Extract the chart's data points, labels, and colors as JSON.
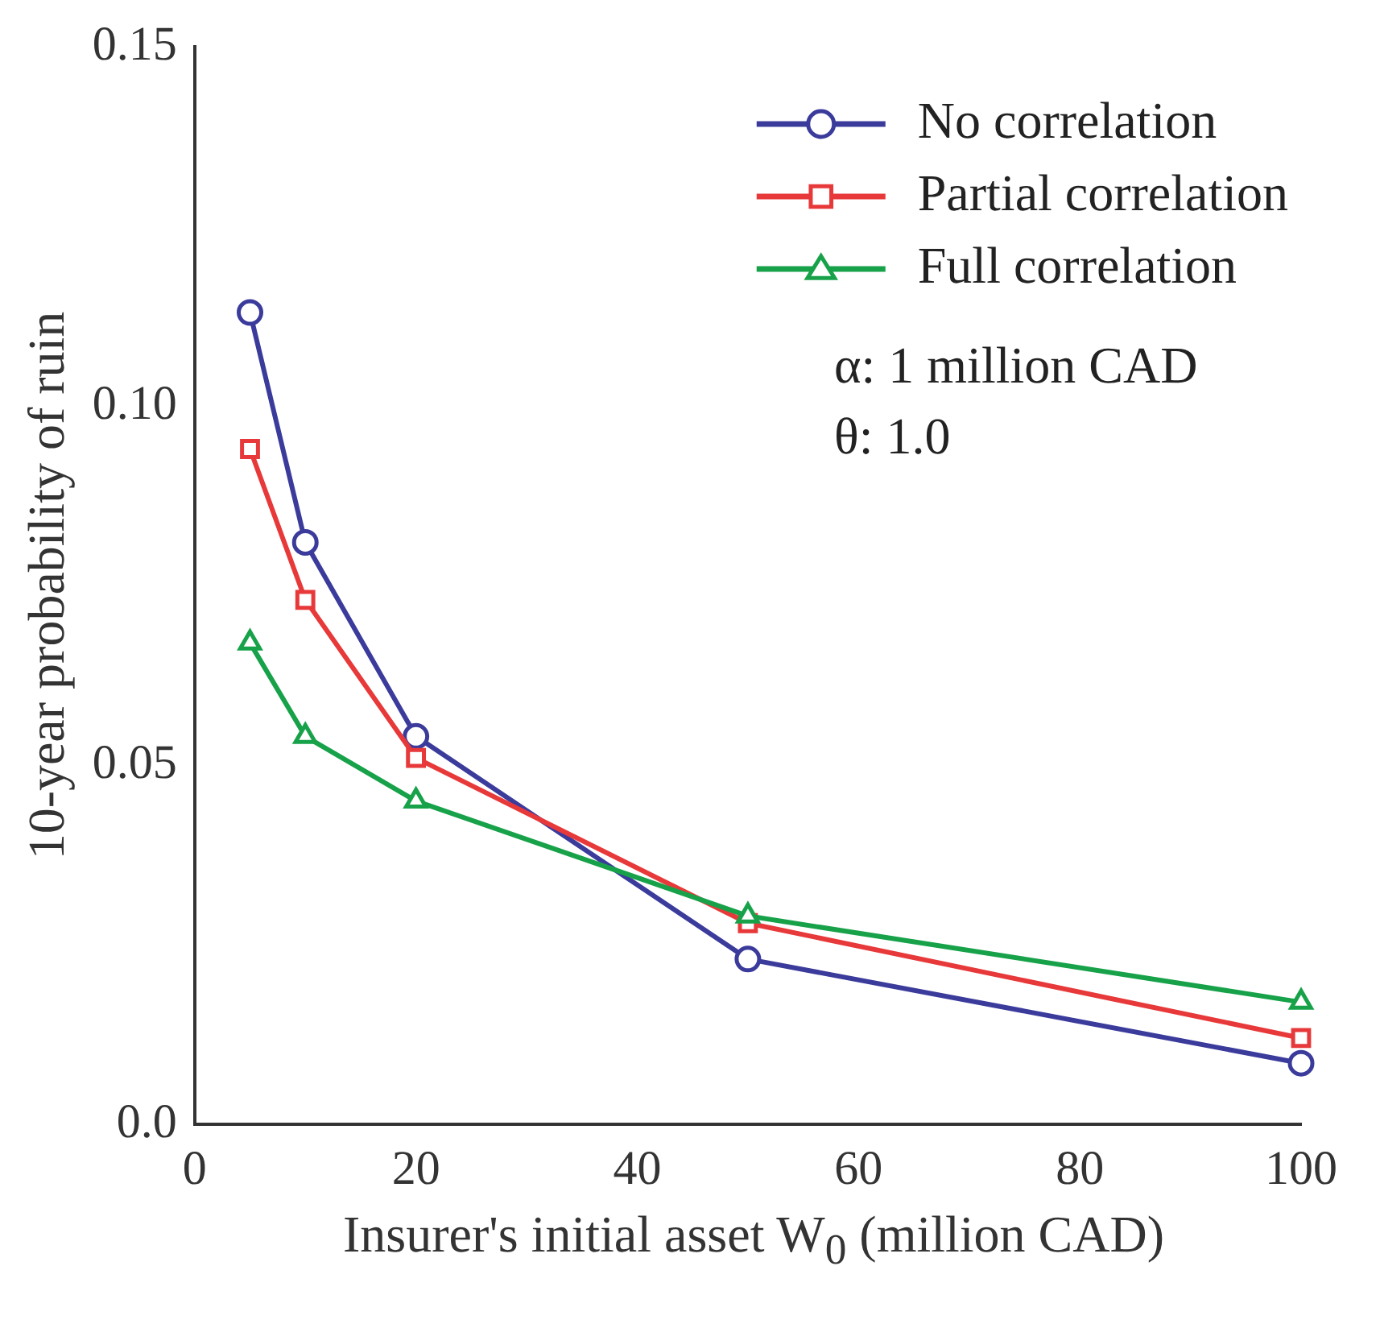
{
  "chart_data": {
    "type": "line",
    "xlabel": "Insurer's initial asset W$_{0}$ (million CAD)",
    "ylabel": "10-year probability of ruin",
    "x": [
      5,
      10,
      20,
      50,
      100
    ],
    "series": [
      {
        "name": "No correlation",
        "color": "#3b3b9c",
        "marker": "circle",
        "values": [
          0.113,
          0.081,
          0.054,
          0.023,
          0.0085
        ]
      },
      {
        "name": "Partial correlation",
        "color": "#e8393a",
        "marker": "square",
        "values": [
          0.094,
          0.073,
          0.051,
          0.028,
          0.012
        ]
      },
      {
        "name": "Full correlation",
        "color": "#17a24a",
        "marker": "triangle",
        "values": [
          0.067,
          0.054,
          0.045,
          0.029,
          0.017
        ]
      }
    ],
    "xlim": [
      0,
      100
    ],
    "xticks": [
      0,
      20,
      40,
      60,
      80,
      100
    ],
    "ylim": [
      0,
      0.15
    ],
    "yticks": [
      {
        "value": 0,
        "label": "0.0"
      },
      0.05,
      {
        "value": 0.1,
        "label": "0.10"
      },
      0.15
    ],
    "grid": false,
    "legend": "top right",
    "line_style": "solid",
    "annotations": [
      "α: 1 million CAD",
      "θ: 1.0"
    ]
  }
}
